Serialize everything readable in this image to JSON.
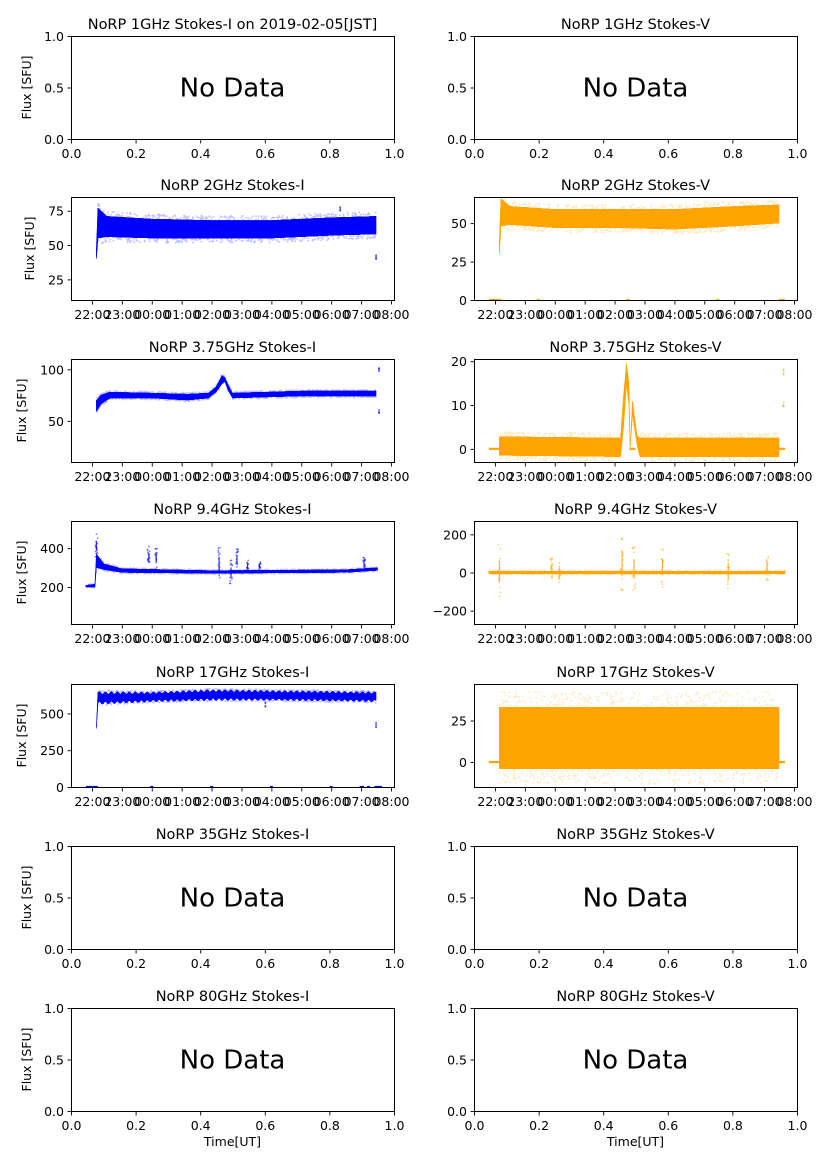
{
  "figure": {
    "xlabel_bottom": "Time[UT]",
    "ylabel_left": "Flux [SFU]",
    "no_data_text": "No Data"
  },
  "chart_data": [
    {
      "id": "1ghz-i",
      "type": "scatter",
      "title": "NoRP 1GHz Stokes-I on 2019-02-05[JST]",
      "ylabel": "Flux [SFU]",
      "xlabel": "",
      "has_data": false,
      "xlim": [
        0,
        1
      ],
      "ylim": [
        0,
        1
      ],
      "xticks": [
        0.0,
        0.2,
        0.4,
        0.6,
        0.8,
        1.0
      ],
      "xticklabels": [
        "0.0",
        "0.2",
        "0.4",
        "0.6",
        "0.8",
        "1.0"
      ],
      "yticks": [
        0.0,
        0.5,
        1.0
      ],
      "yticklabels": [
        "0.0",
        "0.5",
        "1.0"
      ],
      "color": "#0000ff",
      "annotation": "No Data"
    },
    {
      "id": "1ghz-v",
      "type": "scatter",
      "title": "NoRP 1GHz Stokes-V",
      "ylabel": "",
      "xlabel": "",
      "has_data": false,
      "xlim": [
        0,
        1
      ],
      "ylim": [
        0,
        1
      ],
      "xticks": [
        0.0,
        0.2,
        0.4,
        0.6,
        0.8,
        1.0
      ],
      "xticklabels": [
        "0.0",
        "0.2",
        "0.4",
        "0.6",
        "0.8",
        "1.0"
      ],
      "yticks": [
        0.0,
        0.5,
        1.0
      ],
      "yticklabels": [
        "0.0",
        "0.5",
        "1.0"
      ],
      "color": "#ffa500",
      "annotation": "No Data"
    },
    {
      "id": "2ghz-i",
      "type": "scatter",
      "title": "NoRP 2GHz Stokes-I",
      "ylabel": "Flux [SFU]",
      "xlabel": "",
      "has_data": true,
      "xlim_hours": [
        -2.7,
        8.1
      ],
      "ylim": [
        10,
        85
      ],
      "xticks_hours": [
        -2,
        -1,
        0,
        1,
        2,
        3,
        4,
        5,
        6,
        7,
        8
      ],
      "xticklabels": [
        "22:00",
        "23:00",
        "00:00",
        "01:00",
        "02:00",
        "03:00",
        "04:00",
        "05:00",
        "06:00",
        "07:00",
        "08:00"
      ],
      "yticks": [
        25,
        50,
        75
      ],
      "yticklabels": [
        "25",
        "50",
        "75"
      ],
      "color": "#0000ff",
      "observation_span_hours": [
        -1.85,
        7.5
      ],
      "band": [
        {
          "t": -1.85,
          "lo": 40,
          "hi": 48
        },
        {
          "t": -1.8,
          "lo": 55,
          "hi": 77
        },
        {
          "t": -1.5,
          "lo": 56,
          "hi": 71
        },
        {
          "t": 0,
          "lo": 55,
          "hi": 69
        },
        {
          "t": 2,
          "lo": 55,
          "hi": 68
        },
        {
          "t": 4,
          "lo": 55,
          "hi": 68
        },
        {
          "t": 6,
          "lo": 57,
          "hi": 70
        },
        {
          "t": 7.5,
          "lo": 58,
          "hi": 71
        }
      ],
      "outliers": [
        {
          "t": 7.5,
          "v": 41
        },
        {
          "t": 6.3,
          "v": 76
        }
      ]
    },
    {
      "id": "2ghz-v",
      "type": "scatter",
      "title": "NoRP 2GHz Stokes-V",
      "ylabel": "",
      "xlabel": "",
      "has_data": true,
      "xlim_hours": [
        -2.7,
        8.1
      ],
      "ylim": [
        0,
        67
      ],
      "xticks_hours": [
        -2,
        -1,
        0,
        1,
        2,
        3,
        4,
        5,
        6,
        7,
        8
      ],
      "xticklabels": [
        "22:00",
        "23:00",
        "00:00",
        "01:00",
        "02:00",
        "03:00",
        "04:00",
        "05:00",
        "06:00",
        "07:00",
        "08:00"
      ],
      "yticks": [
        0,
        25,
        50
      ],
      "yticklabels": [
        "0",
        "25",
        "50"
      ],
      "color": "#ffa500",
      "observation_span_hours": [
        -1.85,
        7.5
      ],
      "band": [
        {
          "t": -1.85,
          "lo": 30,
          "hi": 40
        },
        {
          "t": -1.8,
          "lo": 48,
          "hi": 66
        },
        {
          "t": -1.5,
          "lo": 49,
          "hi": 61
        },
        {
          "t": 0,
          "lo": 47,
          "hi": 59
        },
        {
          "t": 2,
          "lo": 47,
          "hi": 59
        },
        {
          "t": 4,
          "lo": 46,
          "hi": 59
        },
        {
          "t": 6,
          "lo": 48,
          "hi": 61
        },
        {
          "t": 7.5,
          "lo": 50,
          "hi": 62
        }
      ],
      "baseline_segments": [
        [
          -2.2,
          -1.8
        ],
        [
          -0.6,
          -0.5
        ],
        [
          2.4,
          2.5
        ],
        [
          5.4,
          5.5
        ],
        [
          7.5,
          7.7
        ]
      ],
      "baseline_value": 0
    },
    {
      "id": "3p75ghz-i",
      "type": "scatter",
      "title": "NoRP 3.75GHz Stokes-I",
      "ylabel": "Flux [SFU]",
      "xlabel": "",
      "has_data": true,
      "xlim_hours": [
        -2.7,
        8.1
      ],
      "ylim": [
        10,
        110
      ],
      "xticks_hours": [
        -2,
        -1,
        0,
        1,
        2,
        3,
        4,
        5,
        6,
        7,
        8
      ],
      "xticklabels": [
        "22:00",
        "23:00",
        "00:00",
        "01:00",
        "02:00",
        "03:00",
        "04:00",
        "05:00",
        "06:00",
        "07:00",
        "08:00"
      ],
      "yticks": [
        50,
        100
      ],
      "yticklabels": [
        "50",
        "100"
      ],
      "color": "#0000ff",
      "observation_span_hours": [
        -1.85,
        7.5
      ],
      "band": [
        {
          "t": -1.85,
          "lo": 59,
          "hi": 70
        },
        {
          "t": -1.7,
          "lo": 66,
          "hi": 75
        },
        {
          "t": -1.4,
          "lo": 72,
          "hi": 78
        },
        {
          "t": 0,
          "lo": 72,
          "hi": 77
        },
        {
          "t": 1.2,
          "lo": 70,
          "hi": 76
        },
        {
          "t": 1.9,
          "lo": 72,
          "hi": 77
        },
        {
          "t": 2.15,
          "lo": 78,
          "hi": 83
        },
        {
          "t": 2.35,
          "lo": 86,
          "hi": 94
        },
        {
          "t": 2.45,
          "lo": 88,
          "hi": 92
        },
        {
          "t": 2.55,
          "lo": 80,
          "hi": 85
        },
        {
          "t": 2.7,
          "lo": 72,
          "hi": 77
        },
        {
          "t": 5,
          "lo": 74,
          "hi": 79
        },
        {
          "t": 7.5,
          "lo": 74,
          "hi": 79
        }
      ],
      "outliers": [
        {
          "t": 7.6,
          "v": 99
        },
        {
          "t": 7.6,
          "v": 60
        }
      ]
    },
    {
      "id": "3p75ghz-v",
      "type": "scatter",
      "title": "NoRP 3.75GHz Stokes-V",
      "ylabel": "",
      "xlabel": "",
      "has_data": true,
      "xlim_hours": [
        -2.7,
        8.1
      ],
      "ylim": [
        -3,
        20.5
      ],
      "xticks_hours": [
        -2,
        -1,
        0,
        1,
        2,
        3,
        4,
        5,
        6,
        7,
        8
      ],
      "xticklabels": [
        "22:00",
        "23:00",
        "00:00",
        "01:00",
        "02:00",
        "03:00",
        "04:00",
        "05:00",
        "06:00",
        "07:00",
        "08:00"
      ],
      "yticks": [
        0,
        10,
        20
      ],
      "yticklabels": [
        "0",
        "10",
        "20"
      ],
      "color": "#ffa500",
      "observation_span_hours": [
        -1.85,
        7.5
      ],
      "band": [
        {
          "t": -1.85,
          "lo": -1.5,
          "hi": 2.8
        },
        {
          "t": 2.2,
          "lo": -1.8,
          "hi": 2.5
        },
        {
          "t": 2.3,
          "lo": 5,
          "hi": 12
        },
        {
          "t": 2.4,
          "lo": 15,
          "hi": 19.5
        },
        {
          "t": 2.48,
          "lo": 10,
          "hi": 15
        },
        {
          "t": 2.52,
          "lo": -0.2,
          "hi": 0.2
        },
        {
          "t": 2.6,
          "lo": 8,
          "hi": 11
        },
        {
          "t": 2.75,
          "lo": 1,
          "hi": 3
        },
        {
          "t": 2.85,
          "lo": -1.8,
          "hi": 2.5
        },
        {
          "t": 7.5,
          "lo": -1.8,
          "hi": 2.5
        }
      ],
      "baseline_segments": [
        [
          -2.2,
          -1.85
        ],
        [
          2.5,
          2.7
        ],
        [
          7.5,
          7.7
        ]
      ],
      "baseline_value": 0,
      "outliers": [
        {
          "t": 7.65,
          "v": 17.5
        },
        {
          "t": 7.65,
          "v": 10
        }
      ]
    },
    {
      "id": "9p4ghz-i",
      "type": "scatter",
      "title": "NoRP 9.4GHz Stokes-I",
      "ylabel": "Flux [SFU]",
      "xlabel": "",
      "has_data": true,
      "xlim_hours": [
        -2.7,
        8.1
      ],
      "ylim": [
        10,
        540
      ],
      "xticks_hours": [
        -2,
        -1,
        0,
        1,
        2,
        3,
        4,
        5,
        6,
        7,
        8
      ],
      "xticklabels": [
        "22:00",
        "23:00",
        "00:00",
        "01:00",
        "02:00",
        "03:00",
        "04:00",
        "05:00",
        "06:00",
        "07:00",
        "08:00"
      ],
      "yticks": [
        200,
        400
      ],
      "yticklabels": [
        "200",
        "400"
      ],
      "color": "#0000ff",
      "observation_span_hours": [
        -2.2,
        7.55
      ],
      "band": [
        {
          "t": -2.2,
          "lo": 200,
          "hi": 210
        },
        {
          "t": -1.9,
          "lo": 200,
          "hi": 215
        },
        {
          "t": -1.85,
          "lo": 300,
          "hi": 370
        },
        {
          "t": -1.6,
          "lo": 290,
          "hi": 320
        },
        {
          "t": -1,
          "lo": 275,
          "hi": 295
        },
        {
          "t": 2,
          "lo": 270,
          "hi": 285
        },
        {
          "t": 6.5,
          "lo": 275,
          "hi": 290
        },
        {
          "t": 7.5,
          "lo": 285,
          "hi": 300
        }
      ],
      "spikes": [
        {
          "t": -0.1,
          "lo": 290,
          "hi": 410
        },
        {
          "t": 0.15,
          "lo": 290,
          "hi": 400
        },
        {
          "t": 2.25,
          "lo": 230,
          "hi": 410
        },
        {
          "t": 2.65,
          "lo": 210,
          "hi": 340
        },
        {
          "t": 2.85,
          "lo": 280,
          "hi": 400
        },
        {
          "t": 3.2,
          "lo": 280,
          "hi": 340
        },
        {
          "t": 3.6,
          "lo": 280,
          "hi": 330
        },
        {
          "t": 7.1,
          "lo": 290,
          "hi": 360
        },
        {
          "t": -1.85,
          "lo": 350,
          "hi": 475
        }
      ]
    },
    {
      "id": "9p4ghz-v",
      "type": "scatter",
      "title": "NoRP 9.4GHz Stokes-V",
      "ylabel": "",
      "xlabel": "",
      "has_data": true,
      "xlim_hours": [
        -2.7,
        8.1
      ],
      "ylim": [
        -270,
        270
      ],
      "xticks_hours": [
        -2,
        -1,
        0,
        1,
        2,
        3,
        4,
        5,
        6,
        7,
        8
      ],
      "xticklabels": [
        "22:00",
        "23:00",
        "00:00",
        "01:00",
        "02:00",
        "03:00",
        "04:00",
        "05:00",
        "06:00",
        "07:00",
        "08:00"
      ],
      "yticks": [
        -200,
        0,
        200
      ],
      "yticklabels": [
        "−200",
        "0",
        "200"
      ],
      "color": "#ffa500",
      "observation_span_hours": [
        -2.2,
        7.7
      ],
      "band": [
        {
          "t": -2.2,
          "lo": -8,
          "hi": 8
        },
        {
          "t": 7.7,
          "lo": -8,
          "hi": 8
        }
      ],
      "spikes": [
        {
          "t": -1.85,
          "lo": -140,
          "hi": 150
        },
        {
          "t": -0.1,
          "lo": -40,
          "hi": 80
        },
        {
          "t": 0.15,
          "lo": -60,
          "hi": 60
        },
        {
          "t": 2.25,
          "lo": -120,
          "hi": 220
        },
        {
          "t": 2.65,
          "lo": -110,
          "hi": 150
        },
        {
          "t": 3.6,
          "lo": -80,
          "hi": 140
        },
        {
          "t": 7.1,
          "lo": -40,
          "hi": 100
        },
        {
          "t": 5.8,
          "lo": -110,
          "hi": 120
        }
      ]
    },
    {
      "id": "17ghz-i",
      "type": "scatter",
      "title": "NoRP 17GHz Stokes-I",
      "ylabel": "Flux [SFU]",
      "xlabel": "",
      "has_data": true,
      "xlim_hours": [
        -2.7,
        8.1
      ],
      "ylim": [
        0,
        700
      ],
      "xticks_hours": [
        -2,
        -1,
        0,
        1,
        2,
        3,
        4,
        5,
        6,
        7,
        8
      ],
      "xticklabels": [
        "22:00",
        "23:00",
        "00:00",
        "01:00",
        "02:00",
        "03:00",
        "04:00",
        "05:00",
        "06:00",
        "07:00",
        "08:00"
      ],
      "yticks": [
        0,
        250,
        500
      ],
      "yticklabels": [
        "0",
        "250",
        "500"
      ],
      "color": "#0000ff",
      "observation_span_hours": [
        -1.85,
        7.5
      ],
      "band": [
        {
          "t": -1.85,
          "lo": 400,
          "hi": 420
        },
        {
          "t": -1.8,
          "lo": 570,
          "hi": 640
        },
        {
          "t": 0,
          "lo": 585,
          "hi": 640
        },
        {
          "t": 2,
          "lo": 595,
          "hi": 655
        },
        {
          "t": 4,
          "lo": 595,
          "hi": 650
        },
        {
          "t": 6,
          "lo": 590,
          "hi": 645
        },
        {
          "t": 7.5,
          "lo": 585,
          "hi": 640
        }
      ],
      "oscillation_period_hours": 0.2,
      "baseline_segments": [
        [
          -2.2,
          -1.8
        ],
        [
          -0.05,
          0.05
        ],
        [
          1.95,
          2.05
        ],
        [
          3.95,
          4.05
        ],
        [
          5.95,
          6.05
        ],
        [
          6.95,
          7.1
        ],
        [
          7.2,
          7.3
        ],
        [
          7.45,
          7.7
        ]
      ],
      "baseline_value": 0,
      "outliers": [
        {
          "t": 7.5,
          "v": 420
        },
        {
          "t": 3.8,
          "v": 560
        }
      ]
    },
    {
      "id": "17ghz-v",
      "type": "scatter",
      "title": "NoRP 17GHz Stokes-V",
      "ylabel": "",
      "xlabel": "",
      "has_data": true,
      "xlim_hours": [
        -2.7,
        8.1
      ],
      "ylim": [
        -15,
        47
      ],
      "xticks_hours": [
        -2,
        -1,
        0,
        1,
        2,
        3,
        4,
        5,
        6,
        7,
        8
      ],
      "xticklabels": [
        "22:00",
        "23:00",
        "00:00",
        "01:00",
        "02:00",
        "03:00",
        "04:00",
        "05:00",
        "06:00",
        "07:00",
        "08:00"
      ],
      "yticks": [
        0,
        25
      ],
      "yticklabels": [
        "0",
        "25"
      ],
      "color": "#ffa500",
      "observation_span_hours": [
        -1.85,
        7.5
      ],
      "band": [
        {
          "t": -1.85,
          "lo": -4,
          "hi": 33
        },
        {
          "t": 7.5,
          "lo": -4,
          "hi": 33
        }
      ],
      "baseline_segments": [
        [
          -2.2,
          -1.85
        ],
        [
          7.5,
          7.7
        ]
      ],
      "baseline_value": 0
    },
    {
      "id": "35ghz-i",
      "type": "scatter",
      "title": "NoRP 35GHz Stokes-I",
      "ylabel": "Flux [SFU]",
      "xlabel": "",
      "has_data": false,
      "xlim": [
        0,
        1
      ],
      "ylim": [
        0,
        1
      ],
      "xticks": [
        0.0,
        0.2,
        0.4,
        0.6,
        0.8,
        1.0
      ],
      "xticklabels": [
        "0.0",
        "0.2",
        "0.4",
        "0.6",
        "0.8",
        "1.0"
      ],
      "yticks": [
        0.0,
        0.5,
        1.0
      ],
      "yticklabels": [
        "0.0",
        "0.5",
        "1.0"
      ],
      "color": "#0000ff",
      "annotation": "No Data"
    },
    {
      "id": "35ghz-v",
      "type": "scatter",
      "title": "NoRP 35GHz Stokes-V",
      "ylabel": "",
      "xlabel": "",
      "has_data": false,
      "xlim": [
        0,
        1
      ],
      "ylim": [
        0,
        1
      ],
      "xticks": [
        0.0,
        0.2,
        0.4,
        0.6,
        0.8,
        1.0
      ],
      "xticklabels": [
        "0.0",
        "0.2",
        "0.4",
        "0.6",
        "0.8",
        "1.0"
      ],
      "yticks": [
        0.0,
        0.5,
        1.0
      ],
      "yticklabels": [
        "0.0",
        "0.5",
        "1.0"
      ],
      "color": "#ffa500",
      "annotation": "No Data"
    },
    {
      "id": "80ghz-i",
      "type": "scatter",
      "title": "NoRP 80GHz Stokes-I",
      "ylabel": "Flux [SFU]",
      "xlabel": "Time[UT]",
      "has_data": false,
      "xlim": [
        0,
        1
      ],
      "ylim": [
        0,
        1
      ],
      "xticks": [
        0.0,
        0.2,
        0.4,
        0.6,
        0.8,
        1.0
      ],
      "xticklabels": [
        "0.0",
        "0.2",
        "0.4",
        "0.6",
        "0.8",
        "1.0"
      ],
      "yticks": [
        0.0,
        0.5,
        1.0
      ],
      "yticklabels": [
        "0.0",
        "0.5",
        "1.0"
      ],
      "color": "#0000ff",
      "annotation": "No Data"
    },
    {
      "id": "80ghz-v",
      "type": "scatter",
      "title": "NoRP 80GHz Stokes-V",
      "ylabel": "",
      "xlabel": "Time[UT]",
      "has_data": false,
      "xlim": [
        0,
        1
      ],
      "ylim": [
        0,
        1
      ],
      "xticks": [
        0.0,
        0.2,
        0.4,
        0.6,
        0.8,
        1.0
      ],
      "xticklabels": [
        "0.0",
        "0.2",
        "0.4",
        "0.6",
        "0.8",
        "1.0"
      ],
      "yticks": [
        0.0,
        0.5,
        1.0
      ],
      "yticklabels": [
        "0.0",
        "0.5",
        "1.0"
      ],
      "color": "#ffa500",
      "annotation": "No Data"
    }
  ]
}
